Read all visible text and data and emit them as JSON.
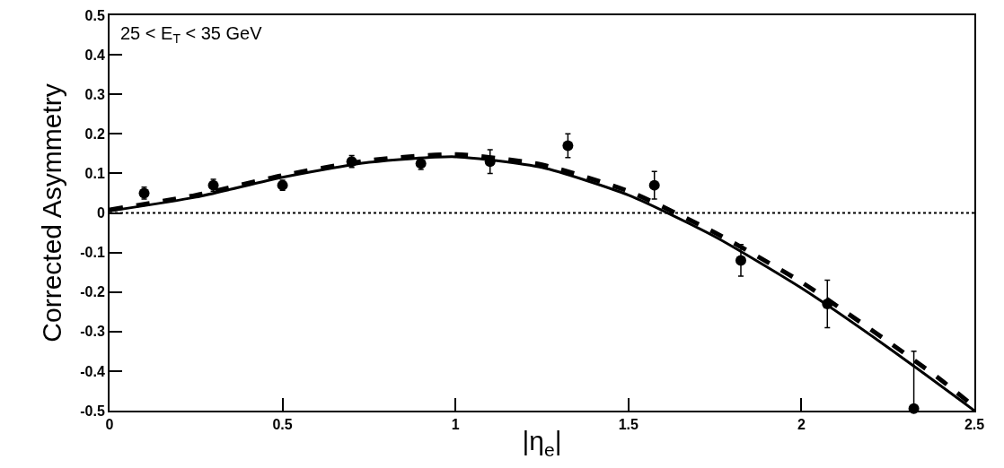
{
  "chart_data": {
    "type": "scatter",
    "xlabel": "|η$_{e}$|",
    "ylabel": "Corrected Asymmetry",
    "annotations": [
      "25 < E$_{T}$ < 35 GeV"
    ],
    "xlim": [
      0,
      2.5
    ],
    "xticks": [
      0,
      0.5,
      1,
      1.5,
      2,
      2.5
    ],
    "ylim": [
      -0.5,
      0.5
    ],
    "yticks": [
      -0.5,
      -0.4,
      -0.3,
      -0.2,
      -0.1,
      0,
      0.1,
      0.2,
      0.3,
      0.4,
      0.5
    ],
    "grid": false,
    "ref_lines": [
      {
        "axis": "y",
        "value": 0,
        "color": "#000000",
        "line_style": "dotted"
      }
    ],
    "series": [
      {
        "type": "line",
        "color": "#000000",
        "line_style": "dashed",
        "x": [
          0,
          0.25,
          0.5,
          0.75,
          1.0,
          1.25,
          1.5,
          1.75,
          2.0,
          2.25,
          2.4,
          2.5
        ],
        "values": [
          0.008,
          0.045,
          0.095,
          0.133,
          0.148,
          0.122,
          0.055,
          -0.05,
          -0.175,
          -0.325,
          -0.42,
          -0.49
        ]
      },
      {
        "type": "line",
        "color": "#000000",
        "line_style": "solid",
        "x": [
          0,
          0.25,
          0.5,
          0.75,
          1.0,
          1.25,
          1.5,
          1.75,
          2.0,
          2.25,
          2.5
        ],
        "values": [
          0.005,
          0.04,
          0.09,
          0.128,
          0.142,
          0.115,
          0.045,
          -0.06,
          -0.19,
          -0.34,
          -0.5
        ]
      },
      {
        "color": "#000000",
        "marker": "circle",
        "x": [
          0.1,
          0.3,
          0.5,
          0.7,
          0.9,
          1.1,
          1.325,
          1.575,
          1.825,
          2.075,
          2.325
        ],
        "values": [
          0.05,
          0.07,
          0.07,
          0.13,
          0.125,
          0.13,
          0.17,
          0.07,
          -0.12,
          -0.23,
          -0.495
        ],
        "errors": [
          0.015,
          0.015,
          0.013,
          0.015,
          0.015,
          0.03,
          0.03,
          0.035,
          0.04,
          0.06,
          [
            -0.5,
            -0.35
          ]
        ]
      }
    ]
  }
}
